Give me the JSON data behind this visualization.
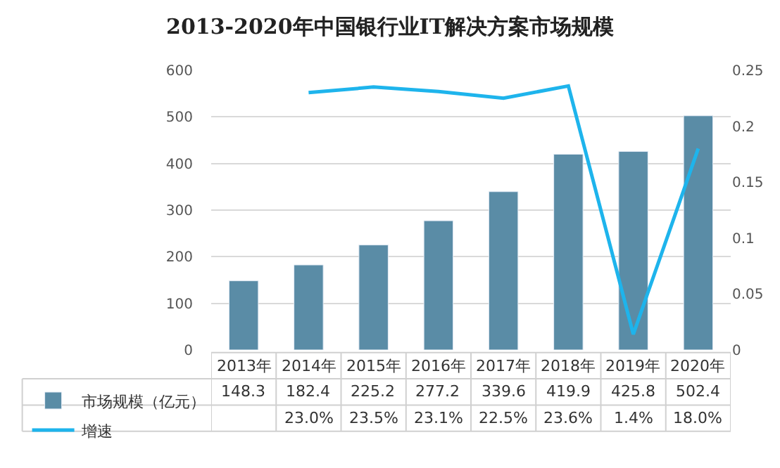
{
  "chart_data": {
    "type": "bar",
    "title": "2013-2020年中国银行业IT解决方案市场规模",
    "categories": [
      "2013年",
      "2014年",
      "2015年",
      "2016年",
      "2017年",
      "2018年",
      "2019年",
      "2020年"
    ],
    "series": [
      {
        "name": "市场规模（亿元）",
        "color": "#5a8ca6",
        "values": [
          148.3,
          182.4,
          225.2,
          277.2,
          339.6,
          419.9,
          425.8,
          502.4
        ]
      },
      {
        "name": "增速",
        "type": "line",
        "axis": "y2",
        "color": "#1eb4ec",
        "values": [
          null,
          0.23,
          0.235,
          0.231,
          0.225,
          0.236,
          0.014,
          0.18
        ],
        "value_labels": [
          null,
          "23.0%",
          "23.5%",
          "23.1%",
          "22.5%",
          "23.6%",
          "1.4%",
          "18.0%"
        ]
      }
    ],
    "ylim": [
      0,
      600
    ],
    "yticks": [
      0,
      100,
      200,
      300,
      400,
      500,
      600
    ],
    "y2lim": [
      0,
      0.25
    ],
    "y2ticks": [
      0,
      0.05,
      0.1,
      0.15,
      0.2,
      0.25
    ],
    "grid": "y",
    "data_labels": true,
    "legend": "bottom",
    "marker": "none"
  }
}
